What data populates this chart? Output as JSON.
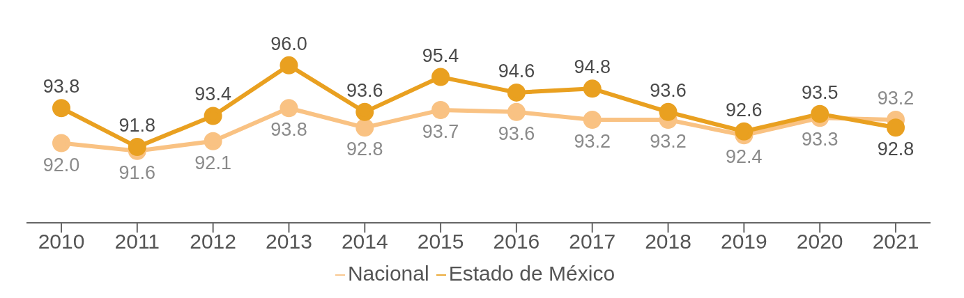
{
  "chart_data": {
    "type": "line",
    "categories": [
      "2010",
      "2011",
      "2012",
      "2013",
      "2014",
      "2015",
      "2016",
      "2017",
      "2018",
      "2019",
      "2020",
      "2021"
    ],
    "series": [
      {
        "name": "Nacional",
        "color": "#f9c283",
        "values": [
          92.0,
          91.6,
          92.1,
          93.8,
          92.8,
          93.7,
          93.6,
          93.2,
          93.2,
          92.4,
          93.3,
          93.2
        ],
        "value_labels": [
          "92.0",
          "91.6",
          "92.1",
          "93.8",
          "92.8",
          "93.7",
          "93.6",
          "93.2",
          "93.2",
          "92.4",
          "93.3",
          "93.2"
        ]
      },
      {
        "name": "Estado de México",
        "color": "#e9a020",
        "values": [
          93.8,
          91.8,
          93.4,
          96.0,
          93.6,
          95.4,
          94.6,
          94.8,
          93.6,
          92.6,
          93.5,
          92.8
        ],
        "value_labels": [
          "93.8",
          "91.8",
          "93.4",
          "96.0",
          "93.6",
          "95.4",
          "94.6",
          "94.8",
          "93.6",
          "92.6",
          "93.5",
          "92.8"
        ]
      }
    ],
    "marker": "circle",
    "line_style": "solid",
    "grid": false,
    "legend": "bottom"
  }
}
